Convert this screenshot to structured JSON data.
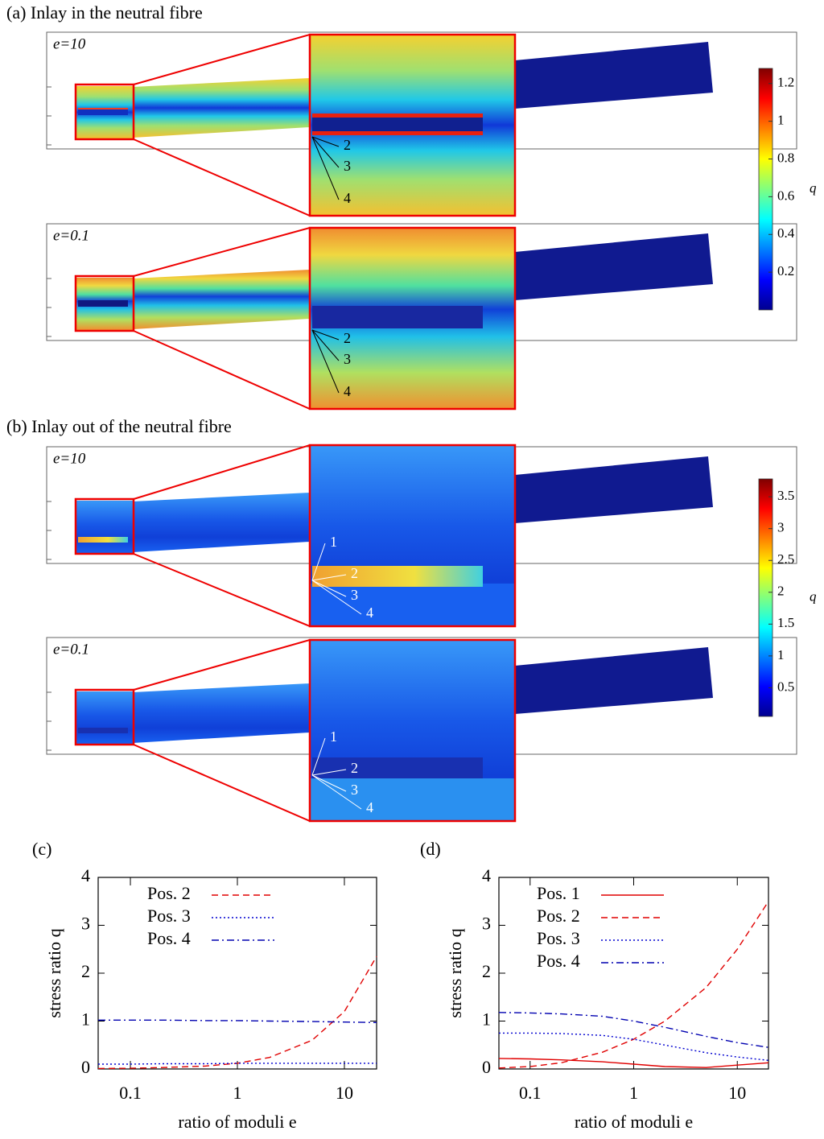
{
  "panels": [
    {
      "label": "(a) Inlay in the neutral fibre",
      "colorbar": {
        "label": "q",
        "clim": [
          0,
          1.28
        ],
        "ticks": [
          0.2,
          0.4,
          0.6,
          0.8,
          1,
          1.2
        ]
      },
      "cases": [
        {
          "label": "e=10",
          "positions": [
            "2",
            "3",
            "4"
          ]
        },
        {
          "label": "e=0.1",
          "positions": [
            "2",
            "3",
            "4"
          ]
        }
      ]
    },
    {
      "label": "(b) Inlay out of the neutral fibre",
      "colorbar": {
        "label": "q",
        "clim": [
          0.05,
          3.78
        ],
        "ticks": [
          0.5,
          1,
          1.5,
          2,
          2.5,
          3,
          3.5
        ]
      },
      "cases": [
        {
          "label": "e=10",
          "positions": [
            "1",
            "2",
            "3",
            "4"
          ]
        },
        {
          "label": "e=0.1",
          "positions": [
            "1",
            "2",
            "3",
            "4"
          ]
        }
      ]
    }
  ],
  "chart_data": [
    {
      "type": "line",
      "title": "(c)",
      "xlabel": "ratio of moduli e",
      "ylabel": "stress ratio q",
      "log_x": true,
      "legend": "upper left",
      "x": [
        0.05,
        0.1,
        0.2,
        0.5,
        1,
        2,
        5,
        10,
        20
      ],
      "xlim": [
        0.05,
        20
      ],
      "xticks": [
        0.1,
        1,
        10
      ],
      "ylim": [
        0,
        4
      ],
      "yticks": [
        0,
        1,
        2,
        3,
        4
      ],
      "series": [
        {
          "name": "Pos. 2",
          "color": "#e00000",
          "dash": "dashed",
          "values": [
            0.01,
            0.015,
            0.03,
            0.06,
            0.12,
            0.24,
            0.6,
            1.2,
            2.35
          ]
        },
        {
          "name": "Pos. 3",
          "color": "#0000d0",
          "dash": "dotted",
          "values": [
            0.1,
            0.1,
            0.11,
            0.11,
            0.12,
            0.12,
            0.12,
            0.12,
            0.12
          ]
        },
        {
          "name": "Pos. 4",
          "color": "#0000b0",
          "dash": "dashdot",
          "values": [
            1.02,
            1.02,
            1.02,
            1.01,
            1.01,
            1.0,
            0.99,
            0.98,
            0.97
          ]
        }
      ]
    },
    {
      "type": "line",
      "title": "(d)",
      "xlabel": "ratio of moduli e",
      "ylabel": "stress ratio q",
      "log_x": true,
      "legend": "upper left",
      "x": [
        0.05,
        0.1,
        0.2,
        0.5,
        1,
        2,
        5,
        10,
        20
      ],
      "xlim": [
        0.05,
        20
      ],
      "xticks": [
        0.1,
        1,
        10
      ],
      "ylim": [
        0,
        4
      ],
      "yticks": [
        0,
        1,
        2,
        3,
        4
      ],
      "series": [
        {
          "name": "Pos. 1",
          "color": "#e00000",
          "dash": "solid",
          "values": [
            0.22,
            0.21,
            0.19,
            0.15,
            0.1,
            0.05,
            0.03,
            0.08,
            0.13
          ]
        },
        {
          "name": "Pos. 2",
          "color": "#e00000",
          "dash": "dashed",
          "values": [
            0.02,
            0.05,
            0.13,
            0.35,
            0.62,
            1.0,
            1.7,
            2.5,
            3.5
          ]
        },
        {
          "name": "Pos. 3",
          "color": "#0000d0",
          "dash": "dotted",
          "values": [
            0.75,
            0.75,
            0.74,
            0.7,
            0.62,
            0.5,
            0.34,
            0.25,
            0.18
          ]
        },
        {
          "name": "Pos. 4",
          "color": "#0000b0",
          "dash": "dashdot",
          "values": [
            1.18,
            1.17,
            1.15,
            1.1,
            1.0,
            0.87,
            0.68,
            0.55,
            0.45
          ]
        }
      ]
    }
  ]
}
